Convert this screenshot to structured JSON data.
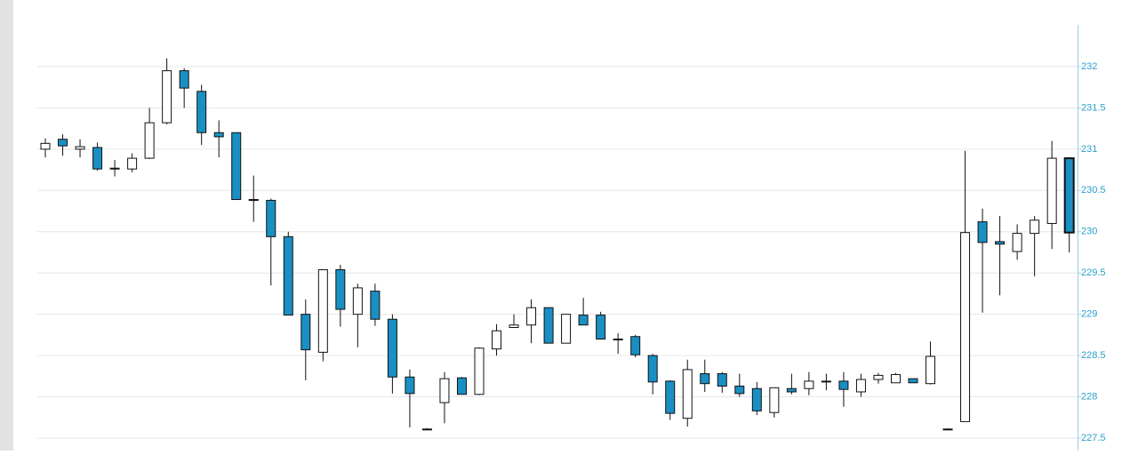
{
  "chart_data": {
    "type": "candlestick",
    "open": [
      231.0,
      231.12,
      231.0,
      231.02,
      230.76,
      230.76,
      230.89,
      231.32,
      231.95,
      231.7,
      231.2,
      231.2,
      230.39,
      230.38,
      229.94,
      229.0,
      228.54,
      229.54,
      229.0,
      229.28,
      228.94,
      228.24,
      227.61,
      227.93,
      228.23,
      228.03,
      228.58,
      228.84,
      228.87,
      229.08,
      228.65,
      228.99,
      228.99,
      228.7,
      228.73,
      228.5,
      228.19,
      227.74,
      228.28,
      228.28,
      228.13,
      228.1,
      227.81,
      228.1,
      228.1,
      228.19,
      228.19,
      228.06,
      228.21,
      228.17,
      228.22,
      228.16,
      227.61,
      227.7,
      230.12,
      229.88,
      229.76,
      229.98,
      230.1,
      230.89
    ],
    "high": [
      231.13,
      231.18,
      231.12,
      231.08,
      230.87,
      230.95,
      231.5,
      232.1,
      231.98,
      231.78,
      231.35,
      231.2,
      230.68,
      230.4,
      230.0,
      229.18,
      229.54,
      229.6,
      229.37,
      229.37,
      229.0,
      228.33,
      227.62,
      228.3,
      228.24,
      228.6,
      228.88,
      229.0,
      229.18,
      229.08,
      229.0,
      229.2,
      229.03,
      228.77,
      228.75,
      228.52,
      228.2,
      228.45,
      228.45,
      228.3,
      228.28,
      228.18,
      228.11,
      228.28,
      228.3,
      228.28,
      228.3,
      228.28,
      228.29,
      228.29,
      228.22,
      228.67,
      227.62,
      230.98,
      230.28,
      230.19,
      230.09,
      230.19,
      231.1,
      230.9
    ],
    "low": [
      230.9,
      230.92,
      230.9,
      230.74,
      230.67,
      230.72,
      230.88,
      231.3,
      231.5,
      231.05,
      230.9,
      230.39,
      230.12,
      229.35,
      228.99,
      228.2,
      228.43,
      228.85,
      228.6,
      228.86,
      228.04,
      227.63,
      227.6,
      227.68,
      228.03,
      228.02,
      228.5,
      228.84,
      228.65,
      228.65,
      228.65,
      228.87,
      228.7,
      228.52,
      228.48,
      228.03,
      227.72,
      227.64,
      228.06,
      228.05,
      228.0,
      227.78,
      227.75,
      228.03,
      228.02,
      228.08,
      227.88,
      228.0,
      228.16,
      228.17,
      228.17,
      228.15,
      227.6,
      227.7,
      229.02,
      229.23,
      229.66,
      229.46,
      229.79,
      229.75
    ],
    "close": [
      231.07,
      231.04,
      231.03,
      230.76,
      230.77,
      230.89,
      231.32,
      231.95,
      231.74,
      231.2,
      231.15,
      230.39,
      230.38,
      229.94,
      228.99,
      228.57,
      229.54,
      229.06,
      229.32,
      228.94,
      228.24,
      228.04,
      227.61,
      228.22,
      228.03,
      228.59,
      228.8,
      228.87,
      229.08,
      228.65,
      229.0,
      228.87,
      228.7,
      228.69,
      228.51,
      228.18,
      227.8,
      228.33,
      228.16,
      228.13,
      228.04,
      227.83,
      228.11,
      228.06,
      228.19,
      228.18,
      228.09,
      228.21,
      228.26,
      228.27,
      228.17,
      228.49,
      227.61,
      229.99,
      229.87,
      229.85,
      229.98,
      230.14,
      230.89,
      229.99
    ],
    "up_color": "#ffffff",
    "down_color": "#1a8fc4",
    "ylim": [
      227.5,
      232.5
    ],
    "yticks": [
      227.5,
      228,
      228.5,
      229,
      229.5,
      230,
      230.5,
      231,
      231.5,
      232
    ],
    "grid": true
  }
}
